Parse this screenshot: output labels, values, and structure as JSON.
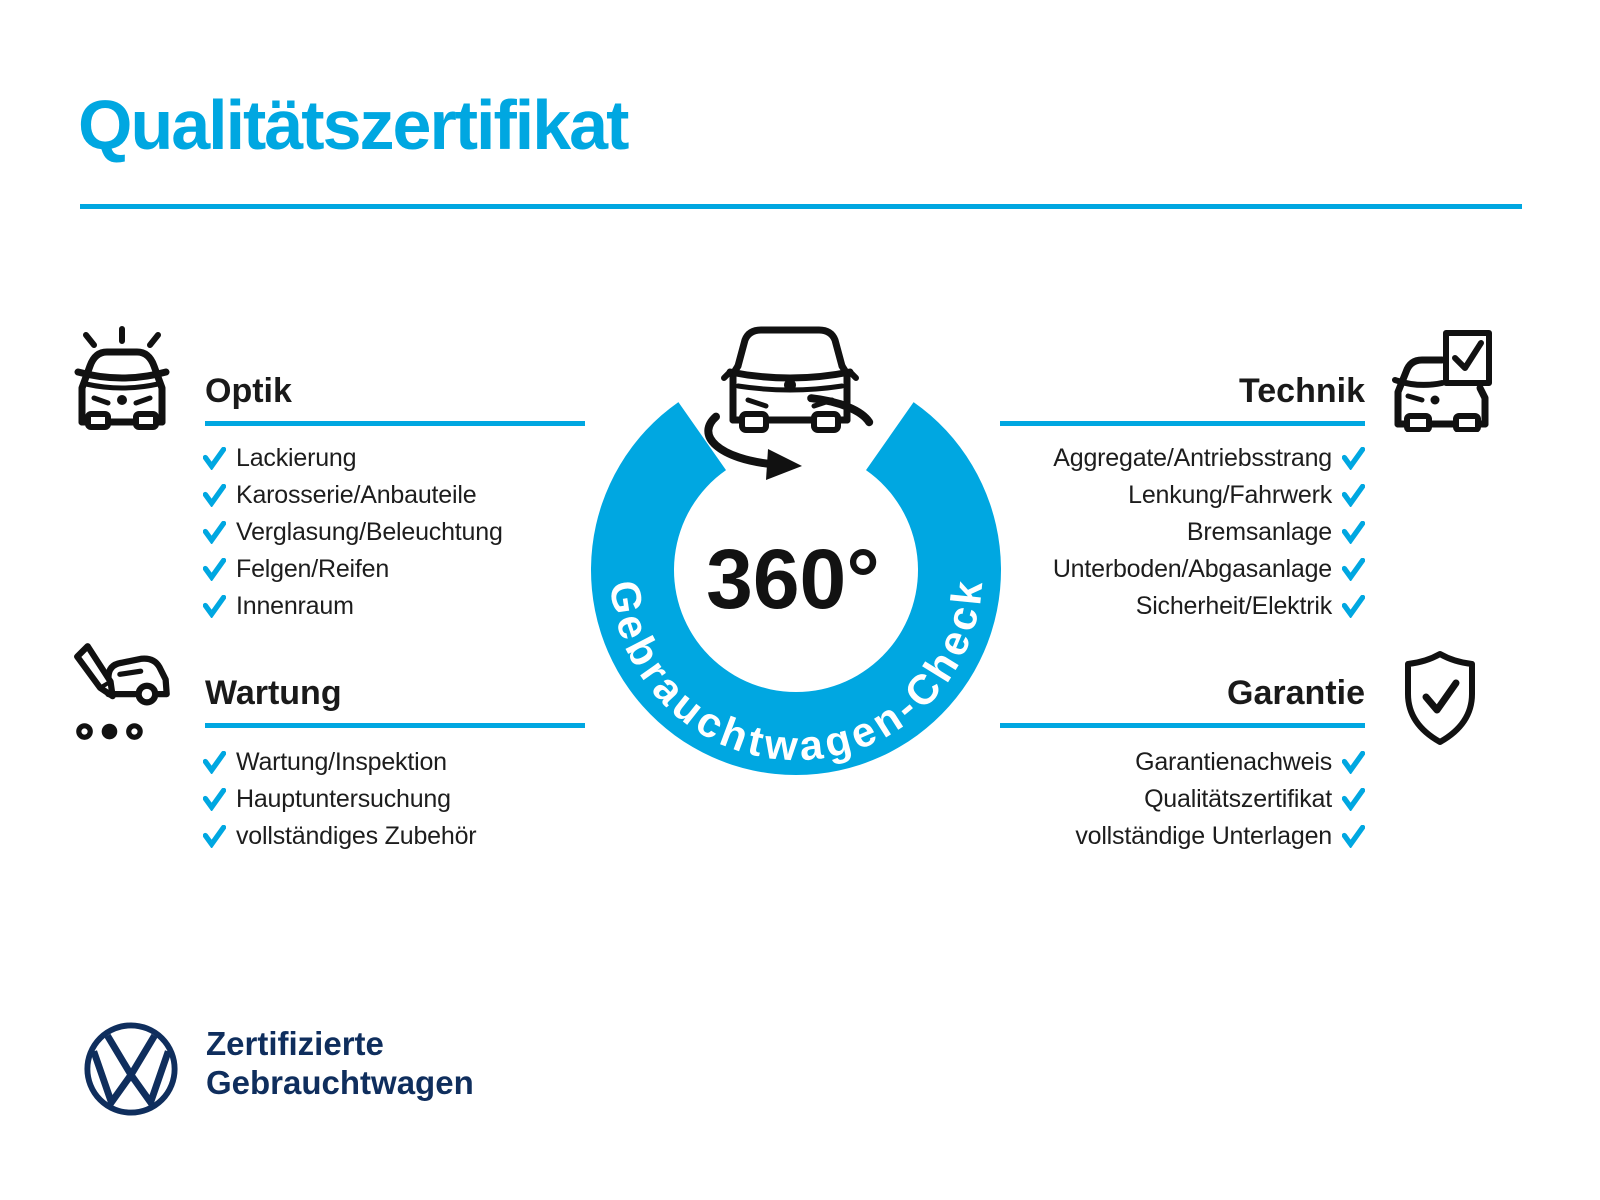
{
  "title": "Qualitätszertifikat",
  "colors": {
    "accent": "#00a7e1",
    "navy": "#0f2e5d",
    "ink": "#1d1d1d"
  },
  "badge": {
    "center_label": "360°",
    "ring_label": "Gebrauchtwagen-Check",
    "car_icon": "rotating-car-360-icon"
  },
  "sections": {
    "optik": {
      "title": "Optik",
      "icon": "shiny-car-icon",
      "items": [
        "Lackierung",
        "Karosserie/Anbauteile",
        "Verglasung/Beleuchtung",
        "Felgen/Reifen",
        "Innenraum"
      ]
    },
    "wartung": {
      "title": "Wartung",
      "icon": "pencil-service-car-icon",
      "items": [
        "Wartung/Inspektion",
        "Hauptuntersuchung",
        "vollständiges Zubehör"
      ]
    },
    "technik": {
      "title": "Technik",
      "icon": "car-checklist-icon",
      "items": [
        "Aggregate/Antriebsstrang",
        "Lenkung/Fahrwerk",
        "Bremsanlage",
        "Unterboden/Abgasanlage",
        "Sicherheit/Elektrik"
      ]
    },
    "garantie": {
      "title": "Garantie",
      "icon": "shield-check-icon",
      "items": [
        "Garantienachweis",
        "Qualitätszertifikat",
        "vollständige Unterlagen"
      ]
    }
  },
  "footer": {
    "brand_line1": "Zertifizierte",
    "brand_line2": "Gebrauchtwagen",
    "logo": "vw-logo"
  }
}
